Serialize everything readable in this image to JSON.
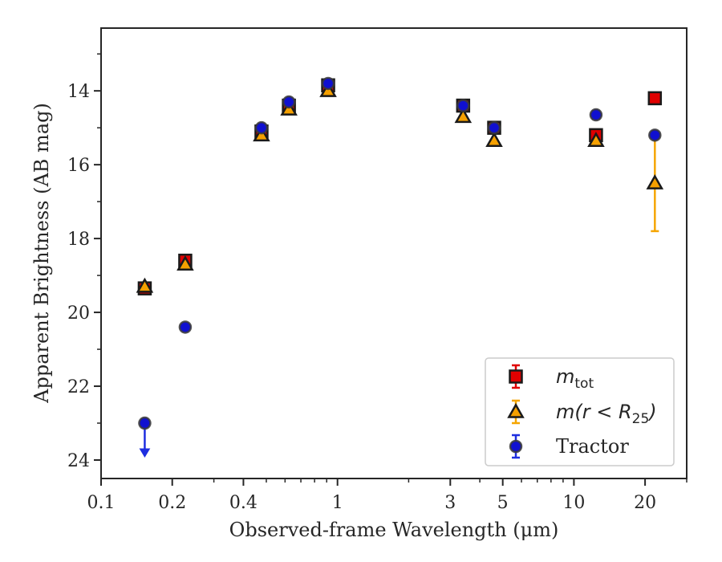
{
  "chart_data": {
    "type": "scatter",
    "xlabel": "Observed-frame Wavelength (μm)",
    "ylabel": "Apparent Brightness (AB mag)",
    "x_scale": "log",
    "xlim": [
      0.1,
      30
    ],
    "ylim": [
      24.5,
      12.3
    ],
    "y_inverted": true,
    "x_ticks": [
      0.1,
      0.2,
      0.4,
      1,
      3,
      5,
      10,
      20
    ],
    "x_tick_labels": [
      "0.1",
      "0.2",
      "0.4",
      "1",
      "3",
      "5",
      "10",
      "20"
    ],
    "y_ticks": [
      14,
      16,
      18,
      20,
      22,
      24
    ],
    "y_tick_labels": [
      "14",
      "16",
      "18",
      "20",
      "22",
      "24"
    ],
    "legend_placement": "lower-right",
    "series": [
      {
        "name": "m_tot",
        "legend_label": {
          "base": "m",
          "sub": "tot"
        },
        "marker": "square",
        "color": "#e00000",
        "edge_color": "#1a1a1a",
        "points": [
          {
            "x": 0.153,
            "y": 19.35,
            "yerr": 0
          },
          {
            "x": 0.227,
            "y": 18.6,
            "yerr": 0.1
          },
          {
            "x": 0.477,
            "y": 15.1,
            "yerr": 0
          },
          {
            "x": 0.623,
            "y": 14.4,
            "yerr": 0
          },
          {
            "x": 0.913,
            "y": 13.85,
            "yerr": 0
          },
          {
            "x": 3.4,
            "y": 14.4,
            "yerr": 0
          },
          {
            "x": 4.6,
            "y": 15.0,
            "yerr": 0
          },
          {
            "x": 12.4,
            "y": 15.2,
            "yerr": 0.1
          },
          {
            "x": 22.0,
            "y": 14.2,
            "yerr": 0
          }
        ]
      },
      {
        "name": "m(r < R_25)",
        "legend_label": {
          "base": "m(r < R",
          "sub": "25",
          "tail": ")"
        },
        "marker": "triangle",
        "color": "#f5a000",
        "edge_color": "#1a1a1a",
        "points": [
          {
            "x": 0.153,
            "y": 19.3,
            "yerr": 0
          },
          {
            "x": 0.227,
            "y": 18.7,
            "yerr": 0
          },
          {
            "x": 0.477,
            "y": 15.2,
            "yerr": 0
          },
          {
            "x": 0.623,
            "y": 14.5,
            "yerr": 0
          },
          {
            "x": 0.913,
            "y": 14.0,
            "yerr": 0
          },
          {
            "x": 3.4,
            "y": 14.7,
            "yerr": 0
          },
          {
            "x": 4.6,
            "y": 15.35,
            "yerr": 0
          },
          {
            "x": 12.4,
            "y": 15.35,
            "yerr": 0
          },
          {
            "x": 22.0,
            "y": 16.5,
            "yerr": 1.3
          }
        ]
      },
      {
        "name": "Tractor",
        "legend_label": {
          "base": "Tractor"
        },
        "marker": "circle",
        "color": "#1010d0",
        "edge_color": "#3a3a3a",
        "points": [
          {
            "x": 0.153,
            "y": 23.0,
            "yerr": 0,
            "upper_limit": true
          },
          {
            "x": 0.227,
            "y": 20.4,
            "yerr": 0
          },
          {
            "x": 0.477,
            "y": 15.0,
            "yerr": 0
          },
          {
            "x": 0.623,
            "y": 14.3,
            "yerr": 0
          },
          {
            "x": 0.913,
            "y": 13.8,
            "yerr": 0
          },
          {
            "x": 3.4,
            "y": 14.4,
            "yerr": 0
          },
          {
            "x": 4.6,
            "y": 15.0,
            "yerr": 0
          },
          {
            "x": 12.4,
            "y": 14.65,
            "yerr": 0.1
          },
          {
            "x": 22.0,
            "y": 15.2,
            "yerr": 0
          }
        ]
      }
    ]
  }
}
